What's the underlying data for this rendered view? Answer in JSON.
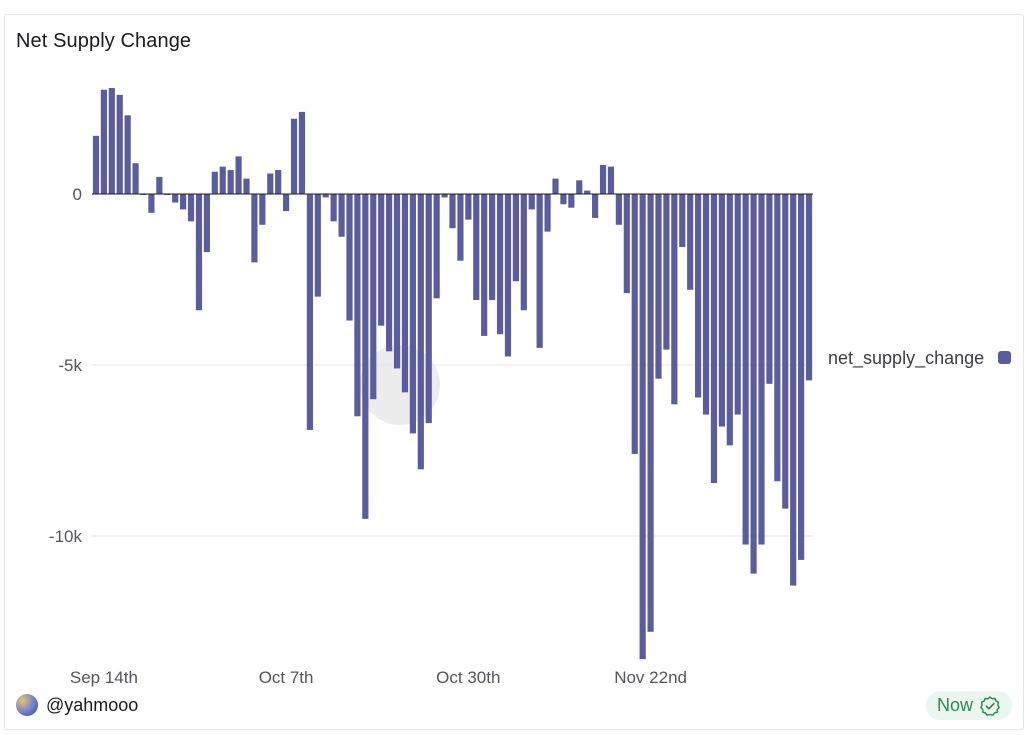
{
  "header": {
    "title": "Net Supply Change"
  },
  "footer": {
    "username": "@yahmooo",
    "status": "Now"
  },
  "icons": {
    "avatar": "avatar-icon",
    "status": "verified-check-icon"
  },
  "colors": {
    "bar": "#5b5c9e",
    "gridline": "#e6e6e6",
    "zero_line": "#1b1b1f",
    "axis_text": "#55555f",
    "status": "#2f8a4f"
  },
  "chart_data": {
    "type": "bar",
    "title": "Net Supply Change",
    "xlabel": "",
    "ylabel": "",
    "ylim": [
      -14000,
      3200
    ],
    "yticks": [
      0,
      -5000,
      -10000
    ],
    "ytick_labels": [
      "0",
      "-5k",
      "-10k"
    ],
    "xtick_labels": [
      {
        "label": "Sep 14th",
        "index": 1
      },
      {
        "label": "Oct 7th",
        "index": 24
      },
      {
        "label": "Oct 30th",
        "index": 47
      },
      {
        "label": "Nov 22nd",
        "index": 70
      }
    ],
    "grid": true,
    "legend_position": "right",
    "series": [
      {
        "name": "net_supply_change",
        "values": [
          1700,
          3050,
          3100,
          2900,
          2300,
          900,
          0,
          -550,
          500,
          0,
          -250,
          -450,
          -800,
          -3400,
          -1700,
          650,
          800,
          700,
          1100,
          450,
          -2000,
          -900,
          600,
          700,
          -500,
          2200,
          2400,
          -6900,
          -3000,
          -100,
          -800,
          -1250,
          -3700,
          -6500,
          -9500,
          -6000,
          -3850,
          -4600,
          -5100,
          -5800,
          -7000,
          -8050,
          -6700,
          -3050,
          -100,
          -1000,
          -1950,
          -750,
          -3100,
          -4150,
          -3100,
          -4100,
          -4750,
          -2550,
          -3400,
          -450,
          -4500,
          -1100,
          450,
          -300,
          -400,
          400,
          100,
          -700,
          850,
          800,
          -900,
          -2900,
          -7600,
          -13600,
          -12800,
          -5400,
          -4550,
          -6150,
          -1550,
          -2800,
          -5950,
          -6450,
          -8450,
          -6800,
          -7350,
          -6450,
          -10250,
          -11100,
          -10250,
          -5550,
          -8400,
          -9200,
          -11450,
          -10700,
          -5450
        ]
      }
    ]
  }
}
